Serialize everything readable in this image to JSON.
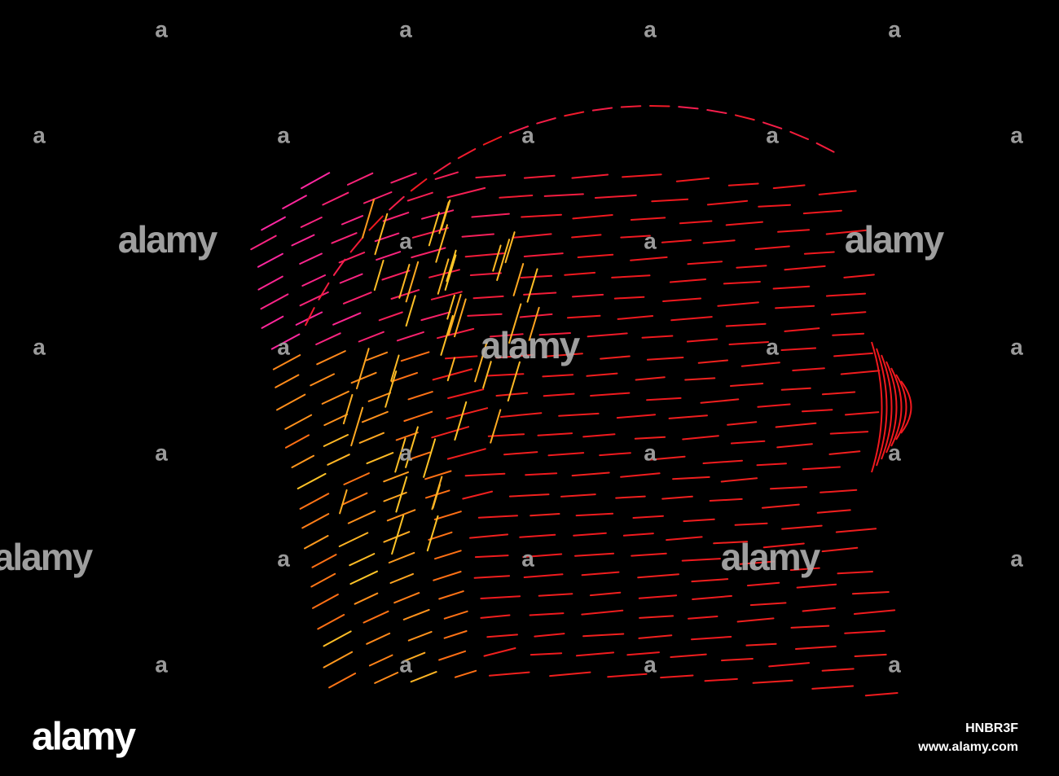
{
  "watermark": {
    "logo": "alamy",
    "small_mark": "a",
    "image_id": "HNBR3F",
    "url": "www.alamy.com"
  }
}
